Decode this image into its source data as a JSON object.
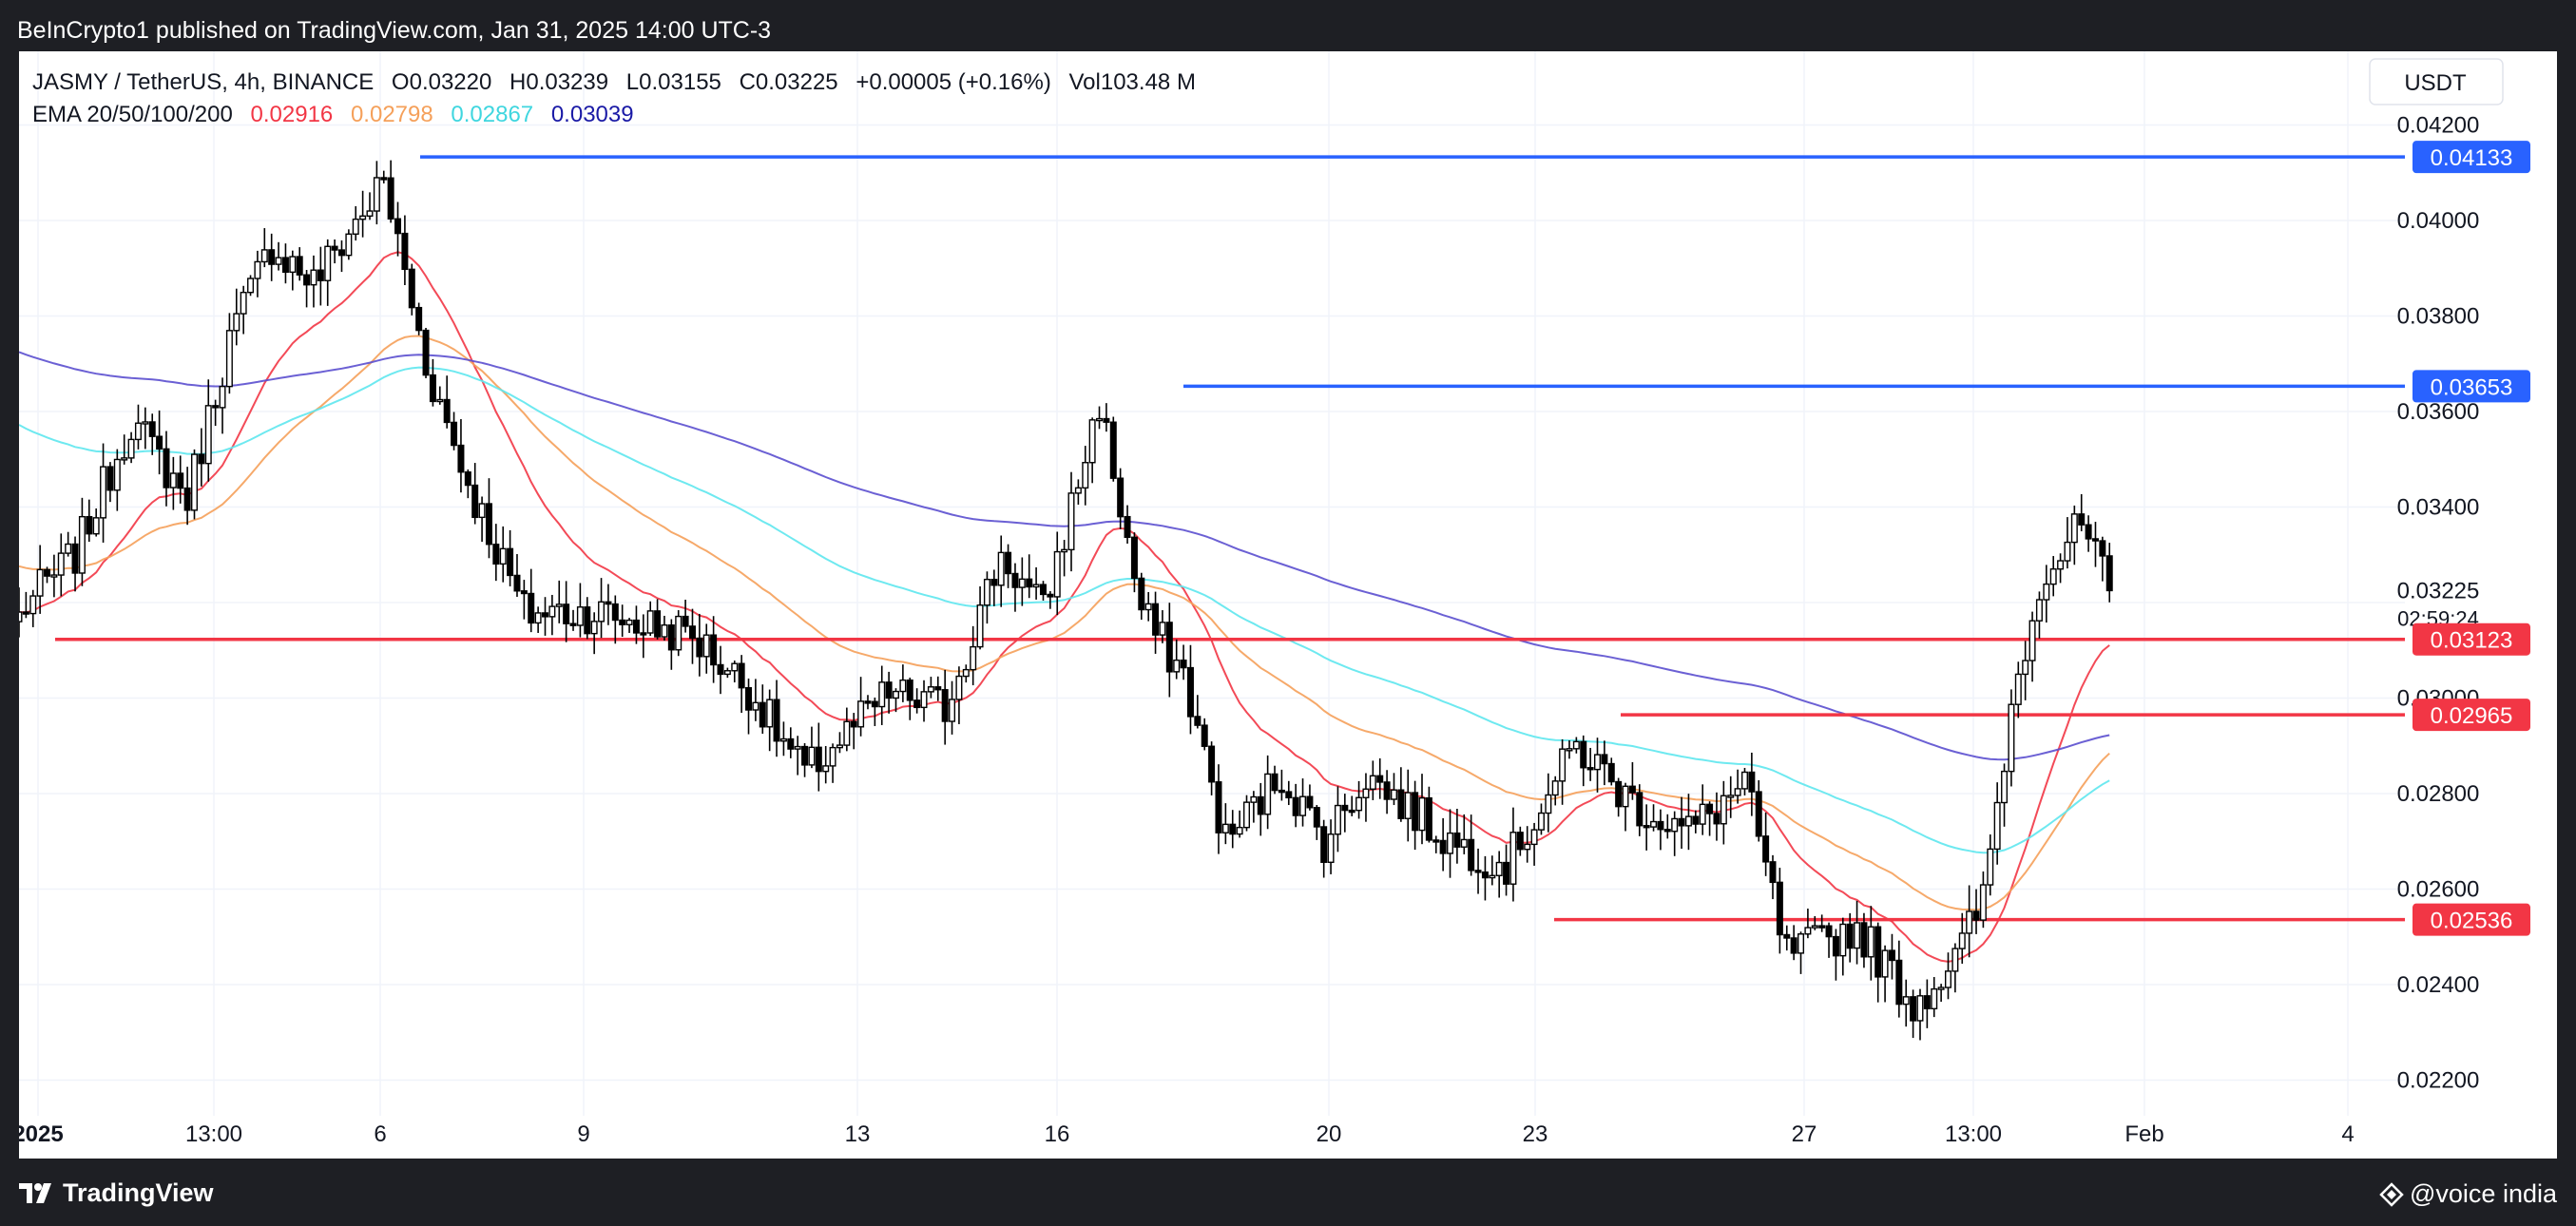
{
  "header": {
    "published": "BeInCrypto1 published on TradingView.com, Jan 31, 2025 14:00 UTC-3"
  },
  "footer": {
    "brand": "TradingView",
    "credit": "@voice india",
    "brand_icon": "tradingview-logo-icon",
    "credit_icon": "diamond-icon"
  },
  "legend": {
    "symbol": "JASMY / TetherUS, 4h, BINANCE",
    "o": "O0.03220",
    "h": "H0.03239",
    "l": "L0.03155",
    "c": "C0.03225",
    "chg": "+0.00005 (+0.16%)",
    "vol": "Vol103.48 M",
    "ema_title": "EMA 20/50/100/200",
    "ema_vals": [
      "0.02916",
      "0.02798",
      "0.02867",
      "0.03039"
    ]
  },
  "currency": "USDT",
  "countdown": "02:59:24",
  "colors": {
    "up": "#ffffff",
    "down": "#000000",
    "blue_level": "#2962ff",
    "red_level": "#f23645",
    "ema20": "#f23645",
    "ema50": "#f5a05a",
    "ema100": "#5ee7ee",
    "ema200": "#5b4fcf"
  },
  "chart_data": {
    "type": "candlestick",
    "interval": "4h",
    "ylim": [
      0.0213,
      0.0431
    ],
    "y_ticks": [
      "0.04200",
      "0.04000",
      "0.03800",
      "0.03600",
      "0.03400",
      "0.03000",
      "0.02800",
      "0.02600",
      "0.02400",
      "0.02200"
    ],
    "x_labels": [
      "2025",
      "13:00",
      "6",
      "9",
      "13",
      "16",
      "20",
      "23",
      "27",
      "13:00",
      "Feb",
      "4"
    ],
    "last_price": "0.03225",
    "levels": [
      {
        "value": 0.04133,
        "label": "0.04133",
        "color": "#2962ff"
      },
      {
        "value": 0.03653,
        "label": "0.03653",
        "color": "#2962ff"
      },
      {
        "value": 0.03123,
        "label": "0.03123",
        "color": "#f23645"
      },
      {
        "value": 0.02965,
        "label": "0.02965",
        "color": "#f23645"
      },
      {
        "value": 0.02536,
        "label": "0.02536",
        "color": "#f23645"
      }
    ],
    "anchors": [
      {
        "i": 0,
        "p": 0.0318
      },
      {
        "i": 8,
        "p": 0.033
      },
      {
        "i": 16,
        "p": 0.0358
      },
      {
        "i": 20,
        "p": 0.035
      },
      {
        "i": 24,
        "p": 0.0342
      },
      {
        "i": 30,
        "p": 0.0375
      },
      {
        "i": 36,
        "p": 0.0395
      },
      {
        "i": 42,
        "p": 0.0387
      },
      {
        "i": 52,
        "p": 0.0408
      },
      {
        "i": 58,
        "p": 0.037
      },
      {
        "i": 64,
        "p": 0.0345
      },
      {
        "i": 72,
        "p": 0.0318
      },
      {
        "i": 82,
        "p": 0.0318
      },
      {
        "i": 96,
        "p": 0.0313
      },
      {
        "i": 104,
        "p": 0.0302
      },
      {
        "i": 112,
        "p": 0.0284
      },
      {
        "i": 124,
        "p": 0.0301
      },
      {
        "i": 132,
        "p": 0.0298
      },
      {
        "i": 140,
        "p": 0.033
      },
      {
        "i": 146,
        "p": 0.0318
      },
      {
        "i": 150,
        "p": 0.034
      },
      {
        "i": 154,
        "p": 0.0362
      },
      {
        "i": 160,
        "p": 0.0318
      },
      {
        "i": 166,
        "p": 0.0305
      },
      {
        "i": 172,
        "p": 0.027
      },
      {
        "i": 180,
        "p": 0.0284
      },
      {
        "i": 186,
        "p": 0.027
      },
      {
        "i": 192,
        "p": 0.0284
      },
      {
        "i": 204,
        "p": 0.027
      },
      {
        "i": 212,
        "p": 0.0265
      },
      {
        "i": 222,
        "p": 0.029
      },
      {
        "i": 230,
        "p": 0.0278
      },
      {
        "i": 238,
        "p": 0.0272
      },
      {
        "i": 246,
        "p": 0.0282
      },
      {
        "i": 252,
        "p": 0.0246
      },
      {
        "i": 262,
        "p": 0.0252
      },
      {
        "i": 270,
        "p": 0.0236
      },
      {
        "i": 276,
        "p": 0.0245
      },
      {
        "i": 280,
        "p": 0.0258
      },
      {
        "i": 284,
        "p": 0.0298
      },
      {
        "i": 288,
        "p": 0.0325
      },
      {
        "i": 294,
        "p": 0.0336
      },
      {
        "i": 298,
        "p": 0.03225
      }
    ],
    "ema": [
      {
        "name": "EMA 20",
        "period": 20,
        "color": "#f23645"
      },
      {
        "name": "EMA 50",
        "period": 50,
        "color": "#f5a05a"
      },
      {
        "name": "EMA 100",
        "period": 100,
        "color": "#5ee7ee"
      },
      {
        "name": "EMA 200",
        "period": 200,
        "color": "#5b4fcf"
      }
    ]
  }
}
